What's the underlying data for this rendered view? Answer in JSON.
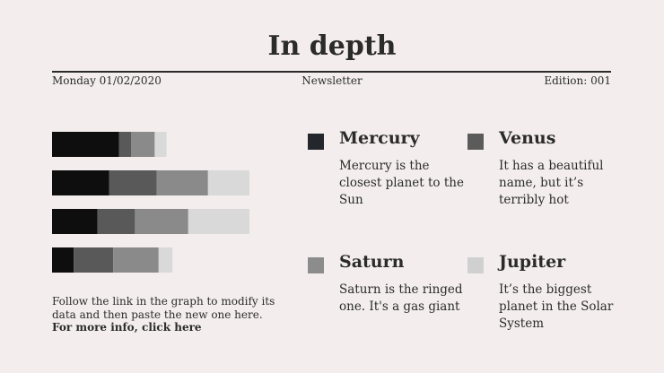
{
  "header": {
    "title": "In depth",
    "date": "Monday 01/02/2020",
    "section": "Newsletter",
    "edition": "Edition: 001"
  },
  "chart_data": {
    "type": "stacked-bar",
    "orientation": "horizontal",
    "categories": [
      null,
      null,
      null,
      null
    ],
    "xlim": [
      0,
      100
    ],
    "series": [
      {
        "name": "Mercury",
        "description": "Mercury is the closest planet to the Sun",
        "color": "#0e0e0e",
        "legend_color": "#23262b",
        "values": [
          34,
          29,
          23,
          11
        ]
      },
      {
        "name": "Venus",
        "description": "It has a beautiful name, but it’s terribly hot",
        "color": "#595959",
        "legend_color": "#5b5b5b",
        "values": [
          6,
          24,
          19,
          20
        ]
      },
      {
        "name": "Saturn",
        "description": "Saturn is the ringed one. It's a gas giant",
        "color": "#8a8a8a",
        "legend_color": "#8c8c8c",
        "values": [
          12,
          26,
          27,
          23
        ]
      },
      {
        "name": "Jupiter",
        "description": "It’s the biggest planet in the Solar System",
        "color": "#d9d9d9",
        "legend_color": "#d0d0d0",
        "values": [
          6,
          21,
          31,
          7
        ]
      }
    ]
  },
  "footnote": {
    "text": "Follow the link in the graph to modify its data and then paste the new one here.",
    "link": "For more info, click here"
  }
}
